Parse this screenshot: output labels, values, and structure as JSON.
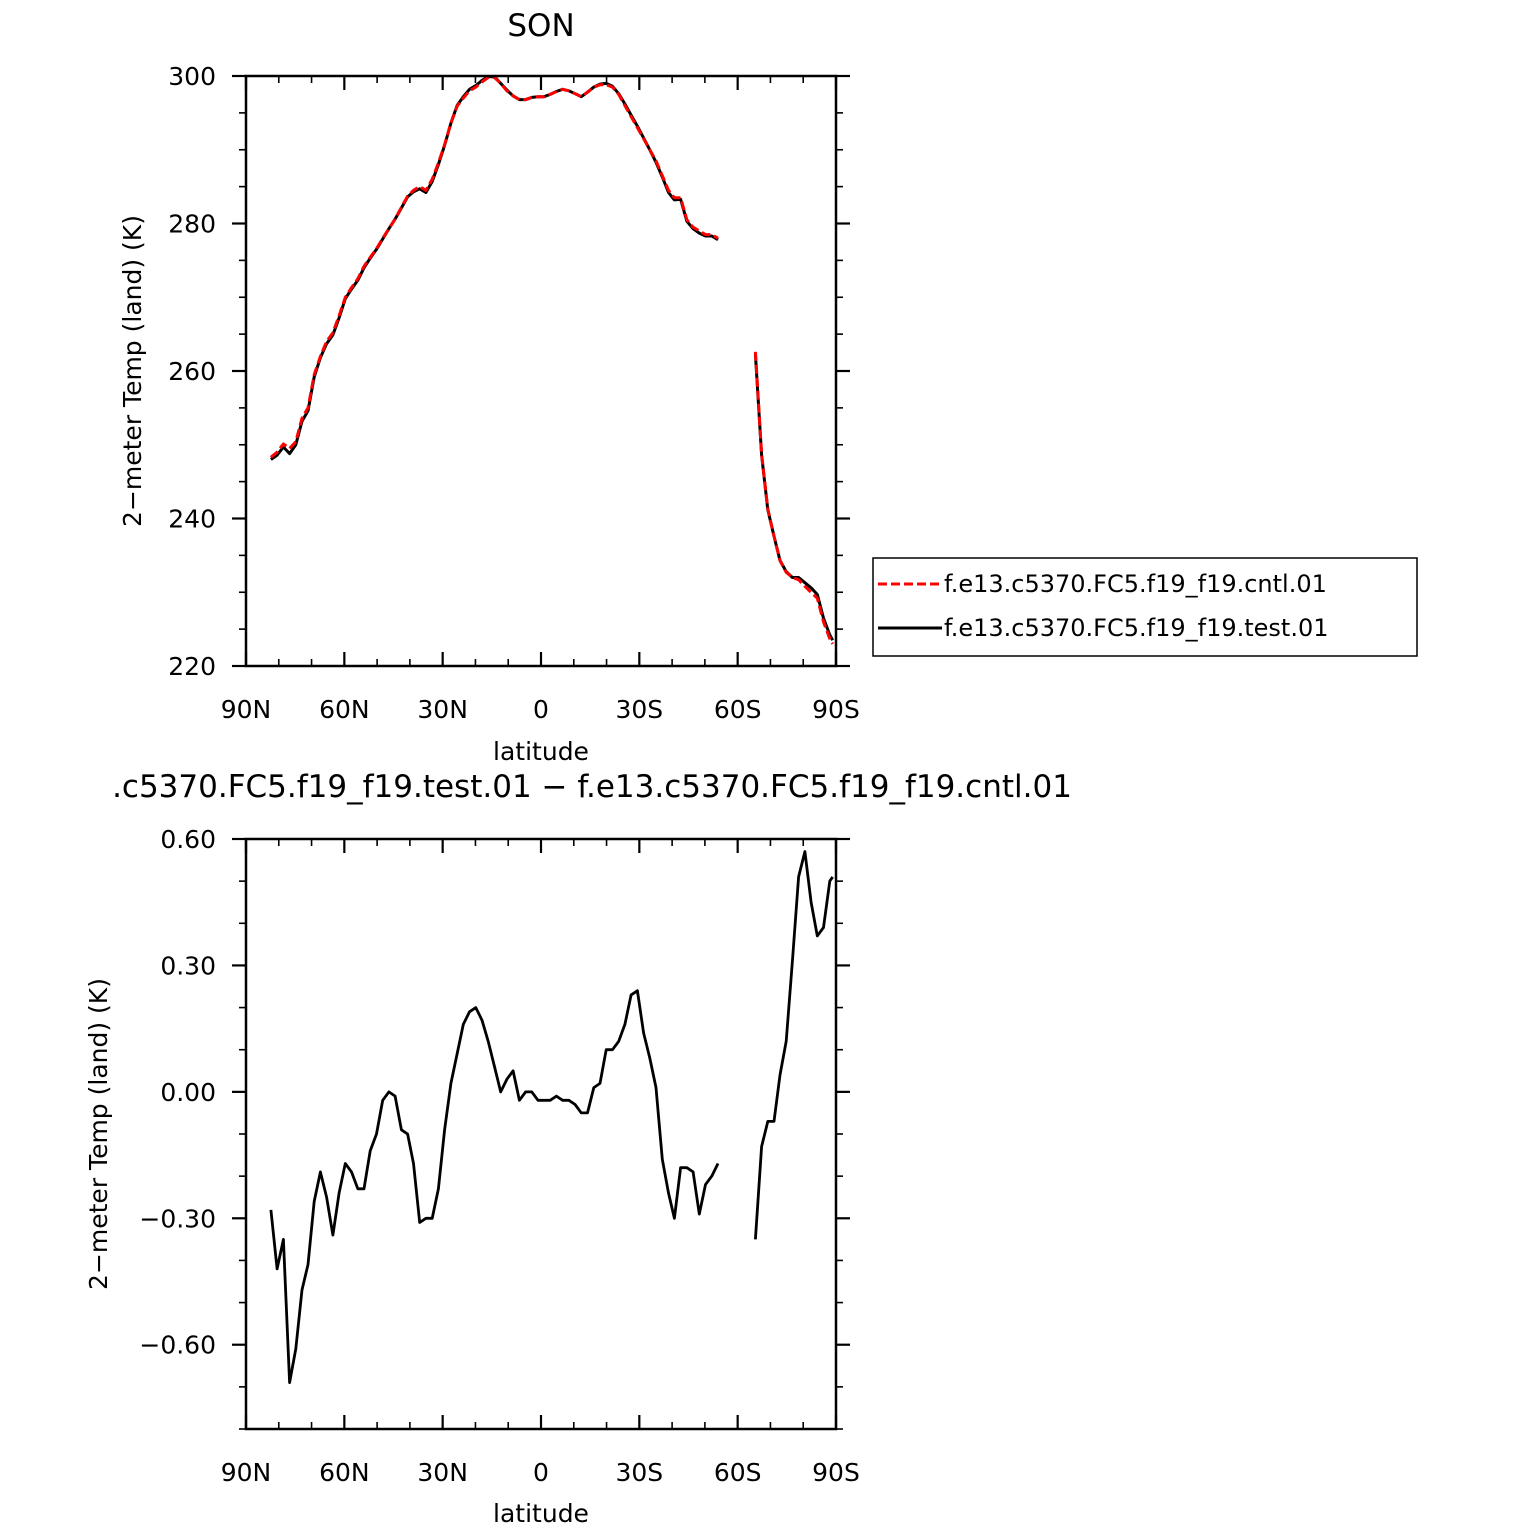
{
  "top_title": "SON",
  "bottom_title": ".c5370.FC5.f19_f19.test.01 − f.e13.c5370.FC5.f19_f19.cntl.01",
  "colors": {
    "cntl": "#ff0000",
    "test": "#000000",
    "axes": "#000000"
  },
  "legend": {
    "entries": [
      {
        "label": "f.e13.c5370.FC5.f19_f19.cntl.01",
        "color": "#ff0000",
        "dash": true
      },
      {
        "label": "f.e13.c5370.FC5.f19_f19.test.01",
        "color": "#000000",
        "dash": false
      }
    ]
  },
  "chart_data": [
    {
      "type": "line",
      "title": "SON",
      "xlabel": "latitude",
      "ylabel": "2−meter Temp (land) (K)",
      "xlim": [
        90,
        -90
      ],
      "ylim": [
        220,
        300
      ],
      "xticks": [
        90,
        60,
        30,
        0,
        -30,
        -60,
        -90
      ],
      "xtick_labels": [
        "90N",
        "60N",
        "30N",
        "0",
        "30S",
        "60S",
        "90S"
      ],
      "yticks": [
        220,
        240,
        260,
        280,
        300
      ],
      "ytick_labels": [
        "220",
        "240",
        "260",
        "280",
        "300"
      ],
      "legend_position": "right",
      "series": [
        {
          "name": "f.e13.c5370.FC5.f19_f19.cntl.01",
          "segments": [
            {
              "x": [
                82.4,
                80.5,
                78.6,
                76.7,
                74.8,
                72.9,
                71.1,
                69.2,
                67.3,
                65.4,
                63.5,
                61.6,
                59.7,
                57.8,
                55.9,
                54.0,
                52.1,
                50.2,
                48.3,
                46.4,
                44.5,
                42.6,
                40.7,
                38.9,
                37.0,
                35.1,
                33.2,
                31.3,
                29.4,
                27.5,
                25.6,
                23.7,
                21.8,
                19.9,
                18.0,
                16.1,
                14.2,
                12.3,
                10.4,
                8.5,
                6.6,
                4.7,
                2.8,
                0.9,
                -0.9,
                -2.8,
                -4.7,
                -6.6,
                -8.5,
                -10.4,
                -12.3,
                -14.2,
                -16.1,
                -18.0,
                -19.9,
                -21.8,
                -23.7,
                -25.6,
                -27.5,
                -29.4,
                -31.3,
                -33.2,
                -35.1,
                -37.0,
                -38.9,
                -40.7,
                -42.6,
                -44.5,
                -46.4,
                -48.3,
                -50.2,
                -52.1,
                -54.0
              ],
              "y": [
                248.3,
                249.0,
                250.1,
                249.5,
                250.4,
                253.6,
                255.0,
                259.5,
                262.0,
                264.0,
                265.2,
                267.5,
                270.0,
                271.3,
                272.5,
                274.2,
                275.4,
                276.6,
                278.0,
                279.3,
                280.6,
                282.2,
                283.7,
                284.5,
                285.0,
                284.5,
                286.0,
                288.2,
                290.7,
                293.6,
                295.9,
                297.0,
                298.0,
                298.5,
                299.2,
                299.8,
                299.8,
                299.0,
                298.0,
                297.3,
                296.8,
                296.8,
                297.1,
                297.2,
                297.2,
                297.5,
                297.9,
                298.2,
                298.0,
                297.6,
                297.2,
                297.8,
                298.5,
                298.8,
                298.8,
                298.5,
                297.5,
                296.0,
                294.5,
                293.0,
                291.5,
                290.0,
                288.5,
                286.5,
                284.5,
                283.5,
                283.5,
                280.5,
                279.5,
                279.0,
                278.5,
                278.5,
                278.0
              ]
            },
            {
              "x": [
                -65.4,
                -67.3,
                -69.2,
                -71.1,
                -72.9,
                -74.8,
                -76.7,
                -78.6,
                -80.5,
                -82.4,
                -84.3,
                -86.2,
                -88.1,
                -89.0
              ],
              "y": [
                262.6,
                248.7,
                241.3,
                237.6,
                234.3,
                232.7,
                232.0,
                231.7,
                230.8,
                230.0,
                229.2,
                226.0,
                223.7,
                223.0
              ]
            }
          ]
        },
        {
          "name": "f.e13.c5370.FC5.f19_f19.test.01",
          "segments": [
            {
              "x": [
                82.4,
                80.5,
                78.6,
                76.7,
                74.8,
                72.9,
                71.1,
                69.2,
                67.3,
                65.4,
                63.5,
                61.6,
                59.7,
                57.8,
                55.9,
                54.0,
                52.1,
                50.2,
                48.3,
                46.4,
                44.5,
                42.6,
                40.7,
                38.9,
                37.0,
                35.1,
                33.2,
                31.3,
                29.4,
                27.5,
                25.6,
                23.7,
                21.8,
                19.9,
                18.0,
                16.1,
                14.2,
                12.3,
                10.4,
                8.5,
                6.6,
                4.7,
                2.8,
                0.9,
                -0.9,
                -2.8,
                -4.7,
                -6.6,
                -8.5,
                -10.4,
                -12.3,
                -14.2,
                -16.1,
                -18.0,
                -19.9,
                -21.8,
                -23.7,
                -25.6,
                -27.5,
                -29.4,
                -31.3,
                -33.2,
                -35.1,
                -37.0,
                -38.9,
                -40.7,
                -42.6,
                -44.5,
                -46.4,
                -48.3,
                -50.2,
                -52.1,
                -54.0
              ],
              "y": [
                248.0,
                248.6,
                249.7,
                248.8,
                250.0,
                253.2,
                254.6,
                259.2,
                261.8,
                263.7,
                264.9,
                267.2,
                269.8,
                271.1,
                272.3,
                274.0,
                275.3,
                276.5,
                277.9,
                279.3,
                280.6,
                282.1,
                283.6,
                284.3,
                284.7,
                284.2,
                285.7,
                288.0,
                290.6,
                293.6,
                296.0,
                297.2,
                298.2,
                298.7,
                299.4,
                299.9,
                299.9,
                299.0,
                298.1,
                297.3,
                296.8,
                296.8,
                297.1,
                297.2,
                297.2,
                297.5,
                297.9,
                298.2,
                298.0,
                297.6,
                297.2,
                297.8,
                298.5,
                298.9,
                299.0,
                298.6,
                297.6,
                296.2,
                294.7,
                293.2,
                291.6,
                290.0,
                288.3,
                286.3,
                284.2,
                283.2,
                283.3,
                280.3,
                279.3,
                278.7,
                278.3,
                278.3,
                277.8
              ]
            },
            {
              "x": [
                -65.4,
                -67.3,
                -69.2,
                -71.1,
                -72.9,
                -74.8,
                -76.7,
                -78.6,
                -80.5,
                -82.4,
                -84.3,
                -86.2,
                -88.1,
                -89.0
              ],
              "y": [
                262.3,
                248.6,
                241.2,
                237.6,
                234.3,
                232.8,
                232.0,
                232.0,
                231.3,
                230.6,
                229.7,
                226.5,
                224.2,
                223.5
              ]
            }
          ]
        }
      ]
    },
    {
      "type": "line",
      "title": ".c5370.FC5.f19_f19.test.01 − f.e13.c5370.FC5.f19_f19.cntl.01",
      "xlabel": "latitude",
      "ylabel": "2−meter Temp (land) (K)",
      "xlim": [
        90,
        -90
      ],
      "ylim": [
        -0.8,
        0.6
      ],
      "xticks": [
        90,
        60,
        30,
        0,
        -30,
        -60,
        -90
      ],
      "xtick_labels": [
        "90N",
        "60N",
        "30N",
        "0",
        "30S",
        "60S",
        "90S"
      ],
      "yticks": [
        -0.6,
        -0.3,
        0.0,
        0.3,
        0.6
      ],
      "ytick_labels": [
        "−0.60",
        "−0.30",
        "0.00",
        "0.30",
        "0.60"
      ],
      "series": [
        {
          "segments": [
            {
              "x": [
                82.4,
                80.5,
                78.6,
                76.7,
                74.8,
                72.9,
                71.1,
                69.2,
                67.3,
                65.4,
                63.5,
                61.6,
                59.7,
                57.8,
                55.9,
                54.0,
                52.1,
                50.2,
                48.3,
                46.4,
                44.5,
                42.6,
                40.7,
                38.9,
                37.0,
                35.1,
                33.2,
                31.3,
                29.4,
                27.5,
                25.6,
                23.7,
                21.8,
                19.9,
                18.0,
                16.1,
                14.2,
                12.3,
                10.4,
                8.5,
                6.6,
                4.7,
                2.8,
                0.9,
                -0.9,
                -2.8,
                -4.7,
                -6.6,
                -8.5,
                -10.4,
                -12.3,
                -14.2,
                -16.1,
                -18.0,
                -19.9,
                -21.8,
                -23.7,
                -25.6,
                -27.5,
                -29.4,
                -31.3,
                -33.2,
                -35.1,
                -37.0,
                -38.9,
                -40.7,
                -42.6,
                -44.5,
                -46.4,
                -48.3,
                -50.2,
                -52.1,
                -54.0
              ],
              "y": [
                -0.28,
                -0.42,
                -0.35,
                -0.69,
                -0.61,
                -0.47,
                -0.41,
                -0.26,
                -0.19,
                -0.25,
                -0.34,
                -0.24,
                -0.17,
                -0.19,
                -0.23,
                -0.23,
                -0.14,
                -0.1,
                -0.02,
                0.0,
                -0.01,
                -0.09,
                -0.1,
                -0.17,
                -0.31,
                -0.3,
                -0.3,
                -0.23,
                -0.09,
                0.02,
                0.09,
                0.16,
                0.19,
                0.2,
                0.17,
                0.12,
                0.06,
                0.0,
                0.03,
                0.05,
                -0.02,
                0.0,
                0.0,
                -0.02,
                -0.02,
                -0.02,
                -0.01,
                -0.02,
                -0.02,
                -0.03,
                -0.05,
                -0.05,
                0.01,
                0.02,
                0.1,
                0.1,
                0.12,
                0.16,
                0.23,
                0.24,
                0.14,
                0.08,
                0.01,
                -0.16,
                -0.24,
                -0.3,
                -0.18,
                -0.18,
                -0.19,
                -0.29,
                -0.22,
                -0.2,
                -0.17
              ]
            },
            {
              "x": [
                -65.4,
                -67.3,
                -69.2,
                -71.1,
                -72.9,
                -74.8,
                -76.7,
                -78.6,
                -80.5,
                -82.4,
                -84.3,
                -86.2,
                -88.1,
                -89.0
              ],
              "y": [
                -0.35,
                -0.13,
                -0.07,
                -0.07,
                0.04,
                0.12,
                0.31,
                0.51,
                0.57,
                0.45,
                0.37,
                0.39,
                0.5,
                0.51
              ]
            }
          ]
        }
      ]
    }
  ]
}
